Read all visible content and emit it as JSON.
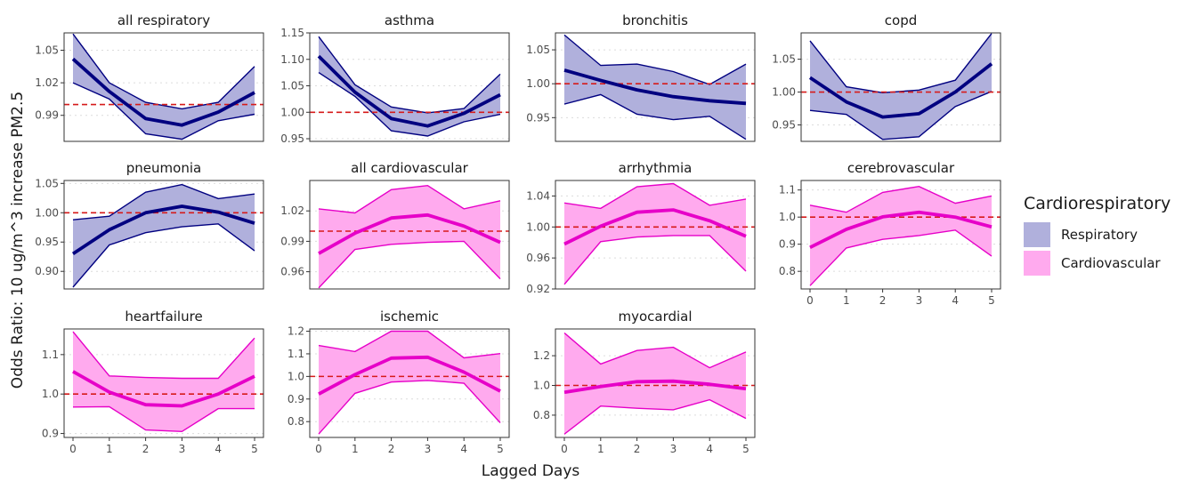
{
  "chart_data": {
    "type": "line",
    "xlabel": "Lagged Days",
    "ylabel": "Odds Ratio: 10 ug/m^3 increase PM2.5",
    "x": [
      0,
      1,
      2,
      3,
      4,
      5
    ],
    "reference_line": 1.0,
    "legend": {
      "title": "Cardiorespiratory",
      "position": "right",
      "entries": [
        {
          "label": "Respiratory",
          "color": "#b0b0dc",
          "line": "#000080"
        },
        {
          "label": "Cardiovascular",
          "color": "#ffaaee",
          "line": "#e600c8"
        }
      ]
    },
    "panels": [
      {
        "title": "all respiratory",
        "group": "Respiratory",
        "ylim": [
          0.966,
          1.066
        ],
        "yticks": [
          0.99,
          1.02,
          1.05
        ],
        "ytick_labels": [
          "0.99",
          "1.02",
          "1.05"
        ],
        "estimate": [
          1.042,
          1.012,
          0.987,
          0.981,
          0.993,
          1.011
        ],
        "lower": [
          1.02,
          1.005,
          0.973,
          0.968,
          0.985,
          0.991
        ],
        "upper": [
          1.065,
          1.02,
          1.002,
          0.996,
          1.002,
          1.035
        ]
      },
      {
        "title": "asthma",
        "group": "Respiratory",
        "ylim": [
          0.945,
          1.15
        ],
        "yticks": [
          0.95,
          1.0,
          1.05,
          1.1,
          1.15
        ],
        "ytick_labels": [
          "0.95",
          "1.00",
          "1.05",
          "1.10",
          "1.15"
        ],
        "estimate": [
          1.106,
          1.038,
          0.988,
          0.974,
          0.998,
          1.033
        ],
        "lower": [
          1.075,
          1.03,
          0.965,
          0.955,
          0.982,
          0.996
        ],
        "upper": [
          1.143,
          1.052,
          1.01,
          0.999,
          1.007,
          1.072
        ]
      },
      {
        "title": "bronchitis",
        "group": "Respiratory",
        "ylim": [
          0.915,
          1.075
        ],
        "yticks": [
          0.95,
          1.0,
          1.05
        ],
        "ytick_labels": [
          "0.95",
          "1.00",
          "1.05"
        ],
        "estimate": [
          1.02,
          1.005,
          0.991,
          0.981,
          0.975,
          0.971
        ],
        "lower": [
          0.97,
          0.984,
          0.955,
          0.947,
          0.952,
          0.918
        ],
        "upper": [
          1.072,
          1.027,
          1.029,
          1.018,
          0.999,
          1.029
        ]
      },
      {
        "title": "copd",
        "group": "Respiratory",
        "ylim": [
          0.925,
          1.09
        ],
        "yticks": [
          0.95,
          1.0,
          1.05
        ],
        "ytick_labels": [
          "0.95",
          "1.00",
          "1.05"
        ],
        "estimate": [
          1.022,
          0.985,
          0.962,
          0.967,
          1.0,
          1.043
        ],
        "lower": [
          0.972,
          0.966,
          0.928,
          0.932,
          0.978,
          1.001
        ],
        "upper": [
          1.078,
          1.008,
          0.999,
          1.003,
          1.018,
          1.089
        ]
      },
      {
        "title": "pneumonia",
        "group": "Respiratory",
        "ylim": [
          0.87,
          1.055
        ],
        "yticks": [
          0.9,
          0.95,
          1.0,
          1.05
        ],
        "ytick_labels": [
          "0.90",
          "0.95",
          "1.00",
          "1.05"
        ],
        "estimate": [
          0.93,
          0.971,
          1.0,
          1.011,
          1.001,
          0.982
        ],
        "lower": [
          0.873,
          0.945,
          0.966,
          0.976,
          0.981,
          0.935
        ],
        "upper": [
          0.988,
          0.994,
          1.035,
          1.048,
          1.024,
          1.032
        ]
      },
      {
        "title": "all cardiovascular",
        "group": "Cardiovascular",
        "ylim": [
          0.943,
          1.05
        ],
        "yticks": [
          0.96,
          0.99,
          1.02
        ],
        "ytick_labels": [
          "0.96",
          "0.99",
          "1.02"
        ],
        "estimate": [
          0.978,
          0.998,
          1.013,
          1.016,
          1.005,
          0.989
        ],
        "lower": [
          0.944,
          0.982,
          0.987,
          0.989,
          0.99,
          0.953
        ],
        "upper": [
          1.022,
          1.018,
          1.041,
          1.045,
          1.022,
          1.03
        ]
      },
      {
        "title": "arrhythmia",
        "group": "Cardiovascular",
        "ylim": [
          0.92,
          1.06
        ],
        "yticks": [
          0.92,
          0.96,
          1.0,
          1.04
        ],
        "ytick_labels": [
          "0.92",
          "0.96",
          "1.00",
          "1.04"
        ],
        "estimate": [
          0.978,
          1.001,
          1.019,
          1.022,
          1.008,
          0.988
        ],
        "lower": [
          0.926,
          0.981,
          0.987,
          0.989,
          0.989,
          0.943
        ],
        "upper": [
          1.031,
          1.024,
          1.052,
          1.056,
          1.028,
          1.036
        ]
      },
      {
        "title": "cerebrovascular",
        "group": "Cardiovascular",
        "ylim": [
          0.735,
          1.135
        ],
        "yticks": [
          0.8,
          0.9,
          1.0,
          1.1
        ],
        "ytick_labels": [
          "0.8",
          "0.9",
          "1.0",
          "1.1"
        ],
        "estimate": [
          0.888,
          0.955,
          1.001,
          1.018,
          1.0,
          0.964
        ],
        "lower": [
          0.747,
          0.886,
          0.918,
          0.932,
          0.952,
          0.856
        ],
        "upper": [
          1.044,
          1.018,
          1.091,
          1.113,
          1.051,
          1.078
        ]
      },
      {
        "title": "heartfailure",
        "group": "Cardiovascular",
        "ylim": [
          0.89,
          1.165
        ],
        "yticks": [
          0.9,
          1.0,
          1.1
        ],
        "ytick_labels": [
          "0.9",
          "1.0",
          "1.1"
        ],
        "estimate": [
          1.057,
          1.005,
          0.973,
          0.97,
          1.0,
          1.045
        ],
        "lower": [
          0.967,
          0.968,
          0.909,
          0.905,
          0.963,
          0.963
        ],
        "upper": [
          1.158,
          1.046,
          1.042,
          1.04,
          1.04,
          1.142
        ]
      },
      {
        "title": "ischemic",
        "group": "Cardiovascular",
        "ylim": [
          0.73,
          1.21
        ],
        "yticks": [
          0.8,
          0.9,
          1.0,
          1.1,
          1.2
        ],
        "ytick_labels": [
          "0.8",
          "0.9",
          "1.0",
          "1.1",
          "1.2"
        ],
        "estimate": [
          0.922,
          1.008,
          1.081,
          1.085,
          1.019,
          0.935
        ],
        "lower": [
          0.745,
          0.925,
          0.975,
          0.982,
          0.97,
          0.795
        ],
        "upper": [
          1.137,
          1.11,
          1.2,
          1.2,
          1.082,
          1.101
        ]
      },
      {
        "title": "myocardial",
        "group": "Cardiovascular",
        "ylim": [
          0.65,
          1.38
        ],
        "yticks": [
          0.8,
          1.0,
          1.2
        ],
        "ytick_labels": [
          "0.8",
          "1.0",
          "1.2"
        ],
        "estimate": [
          0.954,
          0.993,
          1.025,
          1.029,
          1.008,
          0.978
        ],
        "lower": [
          0.672,
          0.861,
          0.846,
          0.836,
          0.904,
          0.778
        ],
        "upper": [
          1.353,
          1.144,
          1.235,
          1.257,
          1.119,
          1.225
        ]
      }
    ]
  }
}
